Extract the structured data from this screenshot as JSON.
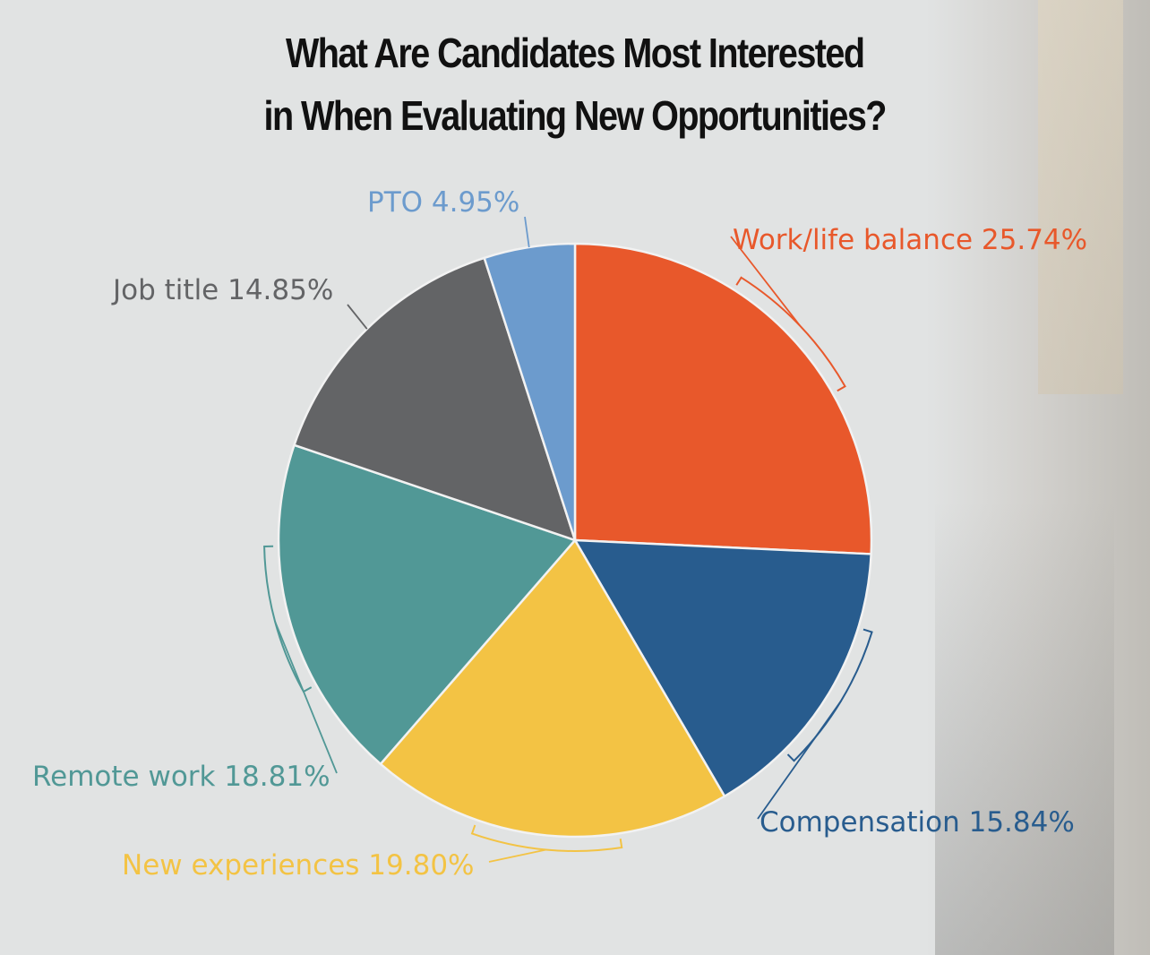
{
  "title_lines": [
    "What Are Candidates Most Interested",
    "in When Evaluating New Opportunities?"
  ],
  "chart_data": {
    "type": "pie",
    "title": "What Are Candidates Most Interested in When Evaluating New Opportunities?",
    "start": "12 o'clock",
    "direction": "clockwise",
    "slices": [
      {
        "label": "Work/life balance",
        "value": 25.74,
        "value_text": "25.74%",
        "color": "#e8582b"
      },
      {
        "label": "Compensation",
        "value": 15.84,
        "value_text": "15.84%",
        "color": "#285c8e"
      },
      {
        "label": "New experiences",
        "value": 19.8,
        "value_text": "19.80%",
        "color": "#f3c344"
      },
      {
        "label": "Remote work",
        "value": 18.81,
        "value_text": "18.81%",
        "color": "#519896"
      },
      {
        "label": "Job title",
        "value": 14.85,
        "value_text": "14.85%",
        "color": "#636466"
      },
      {
        "label": "PTO",
        "value": 4.95,
        "value_text": "4.95%",
        "color": "#6c9bcd"
      }
    ],
    "label_colors": [
      "#e8582b",
      "#285c8e",
      "#f3c344",
      "#519896",
      "#636466",
      "#6c9bcd"
    ],
    "legend": "none (labels placed beside slices)"
  }
}
